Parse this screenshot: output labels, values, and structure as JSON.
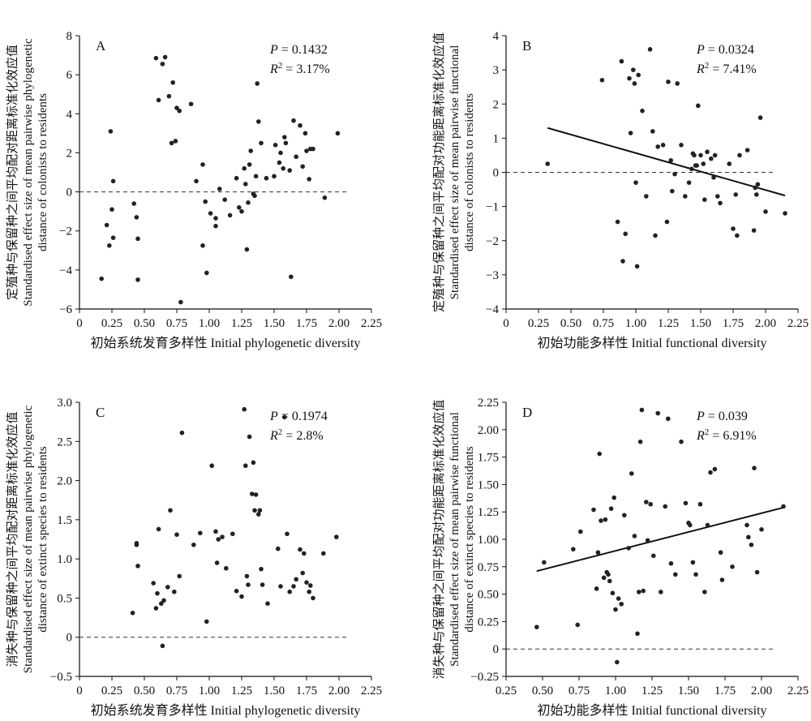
{
  "chart_data": [
    {
      "id": "A",
      "type": "scatter",
      "panel_label": "A",
      "xlabel": "初始系统发育多样性 Initial phylogenetic diversity",
      "ylabel_lines": [
        "定殖种与保留种之间平均配对距离标准化效应值",
        "Standardised effect size of mean pairwise phylogenetic",
        "distance of colonists to residents"
      ],
      "xlim": [
        0,
        2.25
      ],
      "ylim": [
        -6,
        8
      ],
      "xticks": [
        0,
        0.25,
        0.5,
        0.75,
        1.0,
        1.25,
        1.5,
        1.75,
        2.0,
        2.25
      ],
      "xtick_labels": [
        "0",
        "0.25",
        "0.50",
        "0.75",
        "1.00",
        "1.25",
        "1.50",
        "1.75",
        "2.00",
        "2.25"
      ],
      "yticks": [
        -6,
        -4,
        -2,
        0,
        2,
        4,
        6,
        8
      ],
      "ytick_labels": [
        "−6",
        "−4",
        "−2",
        "0",
        "2",
        "4",
        "6",
        "8"
      ],
      "p_text": "0.1432",
      "r2_text": "3.17%",
      "reference_line_y": 0,
      "regression": null,
      "x": [
        0.17,
        0.21,
        0.23,
        0.24,
        0.25,
        0.26,
        0.26,
        0.42,
        0.44,
        0.45,
        0.45,
        0.59,
        0.61,
        0.64,
        0.66,
        0.69,
        0.71,
        0.72,
        0.74,
        0.75,
        0.77,
        0.78,
        0.86,
        0.9,
        0.95,
        0.95,
        0.97,
        0.98,
        1.01,
        1.05,
        1.05,
        1.08,
        1.12,
        1.16,
        1.21,
        1.23,
        1.25,
        1.27,
        1.28,
        1.29,
        1.3,
        1.31,
        1.32,
        1.34,
        1.35,
        1.36,
        1.37,
        1.38,
        1.4,
        1.44,
        1.5,
        1.51,
        1.54,
        1.55,
        1.57,
        1.58,
        1.59,
        1.62,
        1.63,
        1.65,
        1.67,
        1.7,
        1.72,
        1.74,
        1.75,
        1.77,
        1.78,
        1.8,
        1.89,
        1.99
      ],
      "y": [
        -4.45,
        -1.7,
        -2.75,
        3.1,
        -0.9,
        0.55,
        -2.35,
        -0.6,
        -1.3,
        -2.4,
        -4.5,
        6.85,
        4.7,
        6.55,
        6.9,
        4.9,
        2.5,
        5.6,
        2.6,
        4.3,
        4.15,
        -5.65,
        4.5,
        0.55,
        1.4,
        -2.75,
        -0.5,
        -4.15,
        -1.1,
        -1.35,
        -1.75,
        0.15,
        -0.4,
        -1.2,
        0.7,
        -0.8,
        -1.0,
        1.2,
        0.4,
        -2.95,
        -0.55,
        1.4,
        2.1,
        -0.1,
        -0.2,
        0.8,
        5.55,
        3.6,
        2.5,
        0.7,
        0.8,
        2.4,
        1.5,
        2.0,
        1.2,
        2.8,
        2.5,
        1.1,
        -4.35,
        3.65,
        1.8,
        3.4,
        1.3,
        3.0,
        2.1,
        0.65,
        2.2,
        2.2,
        -0.3,
        3.0
      ]
    },
    {
      "id": "B",
      "type": "scatter",
      "panel_label": "B",
      "xlabel": "初始功能多样性 Initial functional diversity",
      "ylabel_lines": [
        "定殖种与保留种之间平均配对功能距离标准化效应值",
        "Standardised effect size of mean pairwise functional",
        "distance of colonists to residents"
      ],
      "xlim": [
        0,
        2.25
      ],
      "ylim": [
        -4,
        4
      ],
      "xticks": [
        0,
        0.25,
        0.5,
        0.75,
        1.0,
        1.25,
        1.5,
        1.75,
        2.0,
        2.25
      ],
      "xtick_labels": [
        "0",
        "0.25",
        "0.50",
        "0.75",
        "1.00",
        "1.25",
        "1.50",
        "1.75",
        "2.00",
        "2.25"
      ],
      "yticks": [
        -4,
        -3,
        -2,
        -1,
        0,
        1,
        2,
        3,
        4
      ],
      "ytick_labels": [
        "−4",
        "−3",
        "−2",
        "−1",
        "0",
        "1",
        "2",
        "3",
        "4"
      ],
      "p_text": "0.0324",
      "r2_text": "7.41%",
      "reference_line_y": 0,
      "regression": {
        "x": [
          0.32,
          2.15
        ],
        "y": [
          1.3,
          -0.68
        ]
      },
      "x": [
        0.32,
        0.74,
        0.86,
        0.89,
        0.9,
        0.92,
        0.95,
        0.96,
        0.98,
        0.99,
        1.0,
        1.01,
        1.02,
        1.05,
        1.08,
        1.11,
        1.13,
        1.15,
        1.17,
        1.21,
        1.24,
        1.25,
        1.27,
        1.28,
        1.3,
        1.32,
        1.35,
        1.38,
        1.41,
        1.43,
        1.44,
        1.45,
        1.46,
        1.47,
        1.48,
        1.5,
        1.52,
        1.53,
        1.55,
        1.58,
        1.6,
        1.61,
        1.63,
        1.65,
        1.72,
        1.75,
        1.77,
        1.78,
        1.8,
        1.86,
        1.91,
        1.92,
        1.93,
        1.94,
        1.96,
        2.0,
        2.15
      ],
      "y": [
        0.25,
        2.7,
        -1.45,
        3.25,
        -2.6,
        -1.8,
        2.75,
        1.15,
        3.0,
        2.6,
        -0.3,
        -2.75,
        2.85,
        1.8,
        -0.7,
        3.6,
        1.2,
        -1.85,
        0.75,
        0.8,
        -1.45,
        2.65,
        0.35,
        -0.55,
        -0.05,
        2.6,
        0.8,
        -0.7,
        -0.3,
        0.1,
        0.55,
        0.5,
        0.2,
        0.2,
        1.95,
        0.5,
        0.25,
        -0.8,
        0.6,
        0.4,
        -0.15,
        0.5,
        -0.7,
        -0.9,
        0.25,
        -1.65,
        -0.65,
        -1.85,
        0.5,
        0.65,
        -1.7,
        -0.45,
        -0.65,
        -0.35,
        1.6,
        -1.15,
        -1.2
      ]
    },
    {
      "id": "C",
      "type": "scatter",
      "panel_label": "C",
      "xlabel": "初始系统发育多样性 Initial phylogenetic diversity",
      "ylabel_lines": [
        "消失种与保留种之间平均配对距离标准化效应值",
        "Standardised effect size of mean pairwise phylogenetic",
        "distance of extinct species to residents"
      ],
      "xlim": [
        0,
        2.25
      ],
      "ylim": [
        -0.5,
        3.0
      ],
      "xticks": [
        0,
        0.25,
        0.5,
        0.75,
        1.0,
        1.25,
        1.5,
        1.75,
        2.0,
        2.25
      ],
      "xtick_labels": [
        "0",
        "0.25",
        "0.50",
        "0.75",
        "1.00",
        "1.25",
        "1.50",
        "1.75",
        "2.00",
        "2.25"
      ],
      "yticks": [
        -0.5,
        0,
        0.5,
        1.0,
        1.5,
        2.0,
        2.5,
        3.0
      ],
      "ytick_labels": [
        "−0.5",
        "0",
        "0.5",
        "1.0",
        "1.5",
        "2.0",
        "2.5",
        "3.0"
      ],
      "p_text": "0.1974",
      "r2_text": "2.8%",
      "reference_line_y": 0,
      "regression": null,
      "x": [
        0.41,
        0.44,
        0.44,
        0.45,
        0.57,
        0.59,
        0.6,
        0.61,
        0.63,
        0.64,
        0.65,
        0.68,
        0.7,
        0.73,
        0.75,
        0.77,
        0.79,
        0.88,
        0.93,
        0.98,
        1.02,
        1.05,
        1.06,
        1.07,
        1.1,
        1.13,
        1.18,
        1.21,
        1.25,
        1.27,
        1.28,
        1.29,
        1.3,
        1.31,
        1.33,
        1.34,
        1.35,
        1.36,
        1.38,
        1.39,
        1.4,
        1.41,
        1.45,
        1.53,
        1.55,
        1.58,
        1.6,
        1.62,
        1.65,
        1.67,
        1.7,
        1.72,
        1.73,
        1.75,
        1.77,
        1.78,
        1.8,
        1.88,
        1.98
      ],
      "y": [
        0.31,
        1.18,
        1.2,
        0.91,
        0.69,
        0.37,
        0.56,
        1.38,
        0.43,
        -0.11,
        0.47,
        0.64,
        1.62,
        0.58,
        1.31,
        0.78,
        2.61,
        1.18,
        1.33,
        0.2,
        2.19,
        1.35,
        0.95,
        1.25,
        1.28,
        0.88,
        1.32,
        0.59,
        0.52,
        2.91,
        2.19,
        0.78,
        0.67,
        2.56,
        1.83,
        2.23,
        1.62,
        1.82,
        1.57,
        1.62,
        0.87,
        0.67,
        0.43,
        1.13,
        0.65,
        2.81,
        1.32,
        0.58,
        0.65,
        0.74,
        1.12,
        0.82,
        1.07,
        0.7,
        0.58,
        0.66,
        0.5,
        1.07,
        1.28
      ]
    },
    {
      "id": "D",
      "type": "scatter",
      "panel_label": "D",
      "xlabel": "初始功能多样性 Initial functional diversity",
      "ylabel_lines": [
        "消失种与保留种之间平均配对功能距离标准化效应值",
        "Standardised effect size of mean pairwise functional",
        "distance of extinct species to residents"
      ],
      "xlim": [
        0.25,
        2.25
      ],
      "ylim": [
        -0.25,
        2.25
      ],
      "xticks": [
        0.25,
        0.5,
        0.75,
        1.0,
        1.25,
        1.5,
        1.75,
        2.0,
        2.25
      ],
      "xtick_labels": [
        "0.25",
        "0.50",
        "0.75",
        "1.00",
        "1.25",
        "1.50",
        "1.75",
        "2.00",
        "2.25"
      ],
      "yticks": [
        -0.25,
        0,
        0.25,
        0.5,
        0.75,
        1.0,
        1.25,
        1.5,
        1.75,
        2.0,
        2.25
      ],
      "ytick_labels": [
        "−0.25",
        "0",
        "0.25",
        "0.50",
        "0.75",
        "1.00",
        "1.25",
        "1.50",
        "1.75",
        "2.00",
        "2.25"
      ],
      "p_text": "0.039",
      "r2_text": "6.91%",
      "reference_line_y": 0,
      "regression": {
        "x": [
          0.46,
          2.15
        ],
        "y": [
          0.71,
          1.29
        ]
      },
      "x": [
        0.46,
        0.51,
        0.71,
        0.74,
        0.76,
        0.85,
        0.87,
        0.88,
        0.89,
        0.9,
        0.92,
        0.93,
        0.94,
        0.95,
        0.96,
        0.97,
        0.98,
        0.99,
        1.0,
        1.01,
        1.02,
        1.04,
        1.06,
        1.09,
        1.11,
        1.13,
        1.15,
        1.16,
        1.17,
        1.18,
        1.19,
        1.21,
        1.22,
        1.24,
        1.26,
        1.29,
        1.31,
        1.34,
        1.36,
        1.38,
        1.41,
        1.45,
        1.48,
        1.5,
        1.51,
        1.53,
        1.55,
        1.58,
        1.61,
        1.63,
        1.65,
        1.68,
        1.72,
        1.73,
        1.8,
        1.9,
        1.91,
        1.93,
        1.95,
        1.97,
        2.0,
        2.15
      ],
      "y": [
        0.2,
        0.79,
        0.91,
        0.22,
        1.07,
        1.27,
        0.55,
        0.88,
        1.78,
        1.17,
        0.65,
        1.18,
        0.7,
        0.68,
        0.62,
        1.28,
        0.51,
        1.38,
        0.36,
        -0.12,
        0.46,
        0.41,
        1.22,
        0.92,
        1.6,
        1.03,
        0.14,
        0.52,
        1.89,
        2.18,
        0.53,
        1.34,
        0.99,
        1.32,
        0.85,
        2.15,
        0.52,
        1.3,
        2.1,
        0.78,
        0.68,
        1.89,
        1.33,
        1.15,
        1.13,
        0.79,
        0.68,
        1.32,
        0.52,
        1.13,
        1.61,
        1.64,
        0.88,
        0.63,
        0.75,
        1.13,
        1.02,
        0.95,
        1.65,
        0.7,
        1.09,
        1.3
      ]
    }
  ]
}
